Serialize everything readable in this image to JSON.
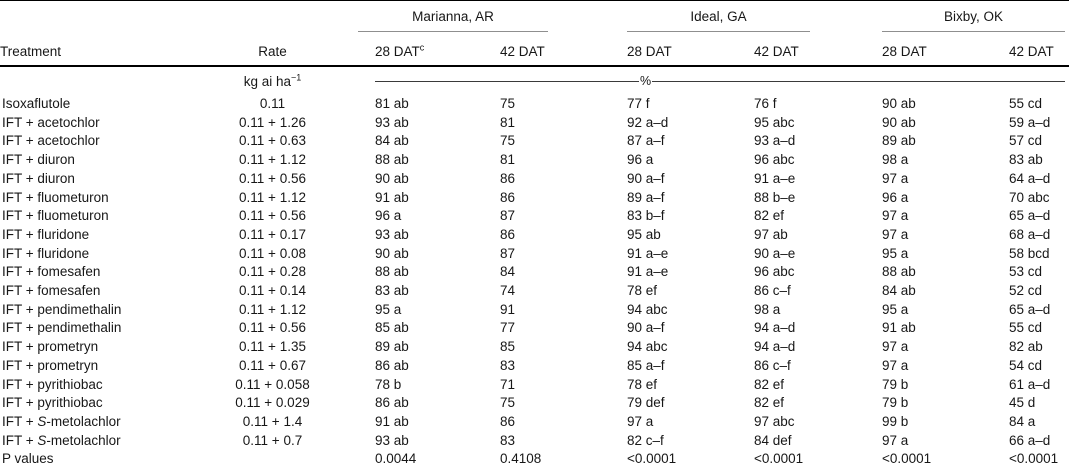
{
  "table": {
    "columns": {
      "treatment": "Treatment",
      "rate": "Rate",
      "dat28": "28 DAT",
      "dat28_sup": "c",
      "dat42": "42 DAT"
    },
    "locations": [
      "Marianna, AR",
      "Ideal, GA",
      "Bixby, OK"
    ],
    "units": {
      "rate_text": "kg ai ha",
      "rate_sup": "−1",
      "data_unit": "%"
    },
    "rows": [
      {
        "treatment": "Isoxaflutole",
        "rate": "0.11",
        "values": [
          "81 ab",
          "75",
          "77 f",
          "76 f",
          "90 ab",
          "55 cd"
        ]
      },
      {
        "treatment": "IFT + acetochlor",
        "rate": "0.11 + 1.26",
        "values": [
          "93 ab",
          "81",
          "92 a–d",
          "95 abc",
          "90 ab",
          "59 a–d"
        ]
      },
      {
        "treatment": "IFT + acetochlor",
        "rate": "0.11 + 0.63",
        "values": [
          "84 ab",
          "75",
          "87 a–f",
          "93 a–d",
          "89 ab",
          "57 cd"
        ]
      },
      {
        "treatment": "IFT + diuron",
        "rate": "0.11 + 1.12",
        "values": [
          "88 ab",
          "81",
          "96 a",
          "96 abc",
          "98 a",
          "83 ab"
        ]
      },
      {
        "treatment": "IFT + diuron",
        "rate": "0.11 + 0.56",
        "values": [
          "90 ab",
          "86",
          "90 a–f",
          "91 a–e",
          "97 a",
          "64 a–d"
        ]
      },
      {
        "treatment": "IFT + fluometuron",
        "rate": "0.11 + 1.12",
        "values": [
          "91 ab",
          "86",
          "89 a–f",
          "88 b–e",
          "96 a",
          "70 abc"
        ]
      },
      {
        "treatment": "IFT + fluometuron",
        "rate": "0.11 + 0.56",
        "values": [
          "96 a",
          "87",
          "83 b–f",
          "82 ef",
          "97 a",
          "65 a–d"
        ]
      },
      {
        "treatment": "IFT + fluridone",
        "rate": "0.11 + 0.17",
        "values": [
          "93 ab",
          "86",
          "95 ab",
          "97 ab",
          "97 a",
          "68 a–d"
        ]
      },
      {
        "treatment": "IFT + fluridone",
        "rate": "0.11 + 0.08",
        "values": [
          "90 ab",
          "87",
          "91 a–e",
          "90 a–e",
          "95 a",
          "58 bcd"
        ]
      },
      {
        "treatment": "IFT + fomesafen",
        "rate": "0.11 + 0.28",
        "values": [
          "88 ab",
          "84",
          "91 a–e",
          "96 abc",
          "88 ab",
          "53 cd"
        ]
      },
      {
        "treatment": "IFT + fomesafen",
        "rate": "0.11 + 0.14",
        "values": [
          "83 ab",
          "74",
          "78 ef",
          "86 c–f",
          "84 ab",
          "52 cd"
        ]
      },
      {
        "treatment": "IFT + pendimethalin",
        "rate": "0.11 + 1.12",
        "values": [
          "95 a",
          "91",
          "94 abc",
          "98 a",
          "95 a",
          "65 a–d"
        ]
      },
      {
        "treatment": "IFT + pendimethalin",
        "rate": "0.11 + 0.56",
        "values": [
          "85 ab",
          "77",
          "90 a–f",
          "94 a–d",
          "91 ab",
          "55 cd"
        ]
      },
      {
        "treatment": "IFT + prometryn",
        "rate": "0.11 + 1.35",
        "values": [
          "89 ab",
          "85",
          "94 abc",
          "94 a–d",
          "97 a",
          "82 ab"
        ]
      },
      {
        "treatment": "IFT + prometryn",
        "rate": "0.11 + 0.67",
        "values": [
          "86 ab",
          "83",
          "85 a–f",
          "86 c–f",
          "97 a",
          "54 cd"
        ]
      },
      {
        "treatment": "IFT + pyrithiobac",
        "rate": "0.11 + 0.058",
        "values": [
          "78 b",
          "71",
          "78 ef",
          "82 ef",
          "79 b",
          "61 a–d"
        ]
      },
      {
        "treatment": "IFT + pyrithiobac",
        "rate": "0.11 + 0.029",
        "values": [
          "86 ab",
          "75",
          "79 def",
          "82 ef",
          "79 b",
          "45 d"
        ]
      },
      {
        "treatment": "IFT + S-metolachlor",
        "italic_s": true,
        "rate": "0.11 + 1.4",
        "values": [
          "91 ab",
          "86",
          "97 a",
          "97 abc",
          "99 b",
          "84 a"
        ]
      },
      {
        "treatment": "IFT + S-metolachlor",
        "italic_s": true,
        "rate": "0.11 + 0.7",
        "values": [
          "93 ab",
          "83",
          "82 c–f",
          "84 def",
          "97 a",
          "66 a–d"
        ]
      },
      {
        "treatment": "P values",
        "rate": "",
        "values": [
          "0.0044",
          "0.4108",
          "<0.0001",
          "<0.0001",
          "<0.0001",
          "<0.0001"
        ]
      }
    ]
  }
}
